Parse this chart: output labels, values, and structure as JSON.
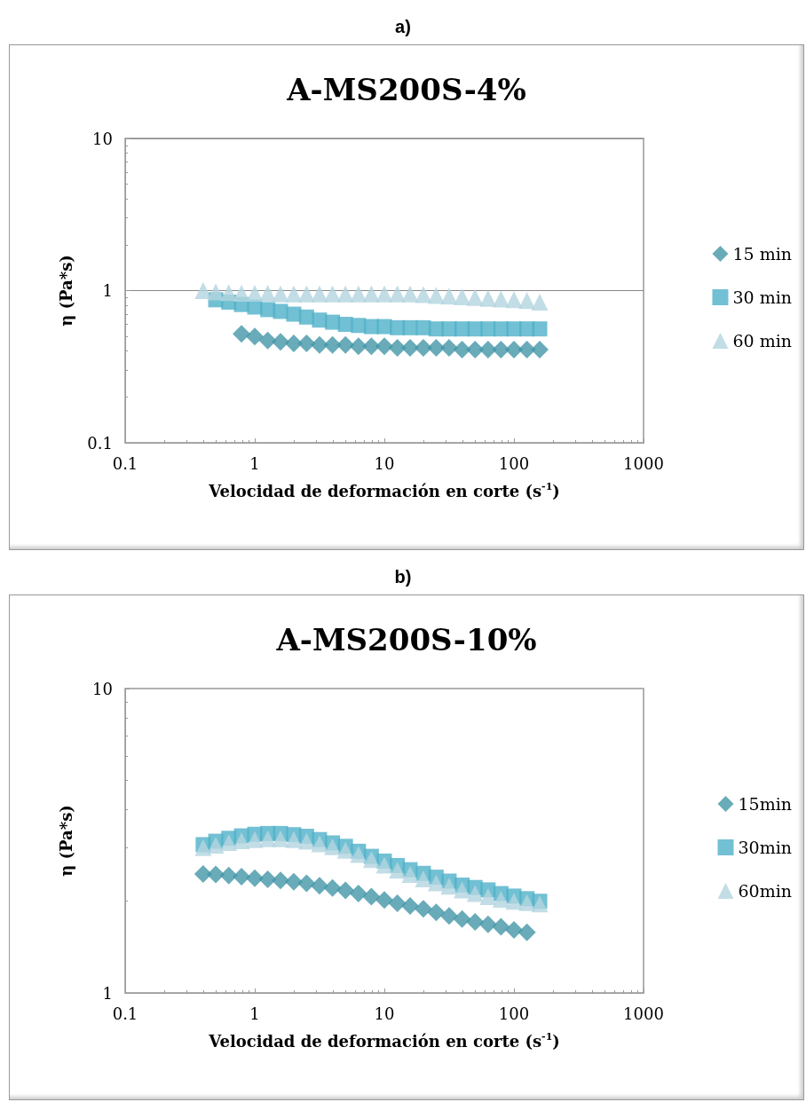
{
  "chart_data": [
    {
      "type": "scatter",
      "title": "A-MS200S-4%",
      "annotations": [
        "a)"
      ],
      "xlabel": "Velocidad de deformación en corte (s$^{-1}$)",
      "ylabel": "η (Pa*s)",
      "log": "xy",
      "xlim": [
        0.1,
        1000
      ],
      "xticks": [
        0.1,
        1,
        10,
        100,
        1000
      ],
      "ylim": [
        0.1,
        10
      ],
      "yticks": [
        0.1,
        1,
        10
      ],
      "grid": "y",
      "legend": "right",
      "series": [
        {
          "name": "15 min",
          "color": "#4496a8",
          "marker": "diamond",
          "x": [
            0.79,
            1,
            1.26,
            1.58,
            2,
            2.51,
            3.16,
            3.98,
            5.01,
            6.31,
            7.94,
            10,
            12.6,
            15.8,
            20,
            25.1,
            31.6,
            39.8,
            50.1,
            63.1,
            79.4,
            100,
            126,
            158
          ],
          "values": [
            0.52,
            0.5,
            0.47,
            0.46,
            0.45,
            0.45,
            0.44,
            0.44,
            0.44,
            0.43,
            0.43,
            0.43,
            0.42,
            0.42,
            0.42,
            0.42,
            0.42,
            0.41,
            0.41,
            0.41,
            0.41,
            0.41,
            0.41,
            0.41
          ]
        },
        {
          "name": "30 min",
          "color": "#4fb0c8",
          "marker": "square",
          "x": [
            0.5,
            0.63,
            0.79,
            1,
            1.26,
            1.58,
            2,
            2.51,
            3.16,
            3.98,
            5.01,
            6.31,
            7.94,
            10,
            12.6,
            15.8,
            20,
            25.1,
            31.6,
            39.8,
            50.1,
            63.1,
            79.4,
            100,
            126,
            158
          ],
          "values": [
            0.87,
            0.84,
            0.81,
            0.78,
            0.75,
            0.73,
            0.7,
            0.67,
            0.64,
            0.62,
            0.6,
            0.59,
            0.58,
            0.58,
            0.57,
            0.57,
            0.57,
            0.56,
            0.56,
            0.56,
            0.56,
            0.56,
            0.56,
            0.56,
            0.56,
            0.56
          ]
        },
        {
          "name": "60 min",
          "color": "#b3d5e0",
          "marker": "triangle",
          "x": [
            0.4,
            0.5,
            0.63,
            0.79,
            1,
            1.26,
            1.58,
            2,
            2.51,
            3.16,
            3.98,
            5.01,
            6.31,
            7.94,
            10,
            12.6,
            15.8,
            20,
            25.1,
            31.6,
            39.8,
            50.1,
            63.1,
            79.4,
            100,
            126,
            158
          ],
          "values": [
            1.0,
            0.98,
            0.97,
            0.96,
            0.96,
            0.96,
            0.95,
            0.95,
            0.95,
            0.95,
            0.95,
            0.95,
            0.95,
            0.95,
            0.95,
            0.95,
            0.95,
            0.94,
            0.93,
            0.92,
            0.91,
            0.9,
            0.89,
            0.88,
            0.87,
            0.86,
            0.84
          ]
        }
      ]
    },
    {
      "type": "scatter",
      "title": "A-MS200S-10%",
      "annotations": [
        "b)"
      ],
      "xlabel": "Velocidad de deformación en corte (s$^{-1}$)",
      "ylabel": "η (Pa*s)",
      "log": "xy",
      "xlim": [
        0.1,
        1000
      ],
      "xticks": [
        0.1,
        1,
        10,
        100,
        1000
      ],
      "ylim": [
        1,
        10
      ],
      "yticks": [
        1,
        10
      ],
      "grid": false,
      "legend": "right",
      "series": [
        {
          "name": "15min",
          "color": "#4496a8",
          "marker": "diamond",
          "x": [
            0.4,
            0.5,
            0.63,
            0.79,
            1,
            1.26,
            1.58,
            2,
            2.51,
            3.16,
            3.98,
            5.01,
            6.31,
            7.94,
            10,
            12.6,
            15.8,
            20,
            25.1,
            31.6,
            39.8,
            50.1,
            63.1,
            79.4,
            100,
            126
          ],
          "values": [
            2.46,
            2.45,
            2.43,
            2.41,
            2.38,
            2.36,
            2.34,
            2.32,
            2.29,
            2.25,
            2.21,
            2.17,
            2.12,
            2.07,
            2.02,
            1.97,
            1.93,
            1.89,
            1.84,
            1.79,
            1.75,
            1.71,
            1.68,
            1.65,
            1.61,
            1.58
          ]
        },
        {
          "name": "30min",
          "color": "#4fb0c8",
          "marker": "square",
          "x": [
            0.4,
            0.5,
            0.63,
            0.79,
            1,
            1.26,
            1.58,
            2,
            2.51,
            3.16,
            3.98,
            5.01,
            6.31,
            7.94,
            10,
            12.6,
            15.8,
            20,
            25.1,
            31.6,
            39.8,
            50.1,
            63.1,
            79.4,
            100,
            126,
            158
          ],
          "values": [
            3.07,
            3.15,
            3.22,
            3.28,
            3.32,
            3.34,
            3.34,
            3.31,
            3.27,
            3.19,
            3.11,
            3.03,
            2.92,
            2.81,
            2.71,
            2.62,
            2.54,
            2.47,
            2.4,
            2.33,
            2.26,
            2.22,
            2.18,
            2.12,
            2.08,
            2.04,
            2.0
          ]
        },
        {
          "name": "60min",
          "color": "#b3d5e0",
          "marker": "triangle",
          "x": [
            0.4,
            0.5,
            0.63,
            0.79,
            1,
            1.26,
            1.58,
            2,
            2.51,
            3.16,
            3.98,
            5.01,
            6.31,
            7.94,
            10,
            12.6,
            15.8,
            20,
            25.1,
            31.6,
            39.8,
            50.1,
            63.1,
            79.4,
            100,
            126,
            158
          ],
          "values": [
            3.0,
            3.06,
            3.12,
            3.16,
            3.19,
            3.21,
            3.21,
            3.19,
            3.15,
            3.09,
            3.02,
            2.94,
            2.85,
            2.74,
            2.63,
            2.53,
            2.45,
            2.37,
            2.3,
            2.24,
            2.18,
            2.12,
            2.07,
            2.03,
            2.0,
            1.98,
            1.96
          ]
        }
      ]
    }
  ]
}
